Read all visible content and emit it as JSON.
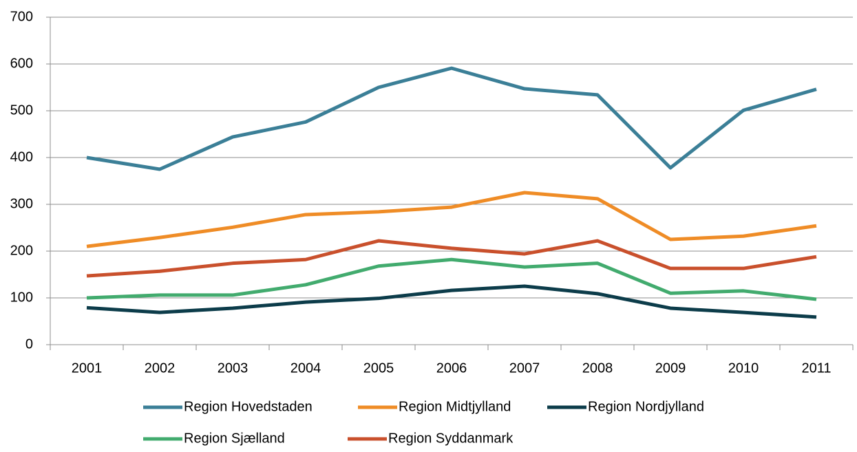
{
  "chart_data": {
    "type": "line",
    "categories": [
      "2001",
      "2002",
      "2003",
      "2004",
      "2005",
      "2006",
      "2007",
      "2008",
      "2009",
      "2010",
      "2011"
    ],
    "series": [
      {
        "name": "Region Hovedstaden",
        "color": "#3b7f97",
        "values": [
          400,
          375,
          444,
          476,
          550,
          591,
          547,
          534,
          378,
          501,
          546
        ]
      },
      {
        "name": "Region Midtjylland",
        "color": "#ef8c26",
        "values": [
          210,
          229,
          251,
          278,
          284,
          294,
          325,
          312,
          225,
          232,
          254
        ]
      },
      {
        "name": "Region Nordjylland",
        "color": "#0c3c4a",
        "values": [
          79,
          69,
          78,
          91,
          99,
          116,
          125,
          109,
          78,
          69,
          59
        ]
      },
      {
        "name": "Region Sjælland",
        "color": "#42ab6e",
        "values": [
          100,
          106,
          106,
          128,
          168,
          182,
          166,
          174,
          110,
          115,
          97
        ]
      },
      {
        "name": "Region Syddanmark",
        "color": "#c9502c",
        "values": [
          147,
          157,
          174,
          182,
          222,
          206,
          194,
          222,
          163,
          163,
          188
        ]
      }
    ],
    "ylim": [
      0,
      700
    ],
    "yticks": [
      0,
      100,
      200,
      300,
      400,
      500,
      600,
      700
    ],
    "grid": true,
    "legend": "bottom"
  }
}
